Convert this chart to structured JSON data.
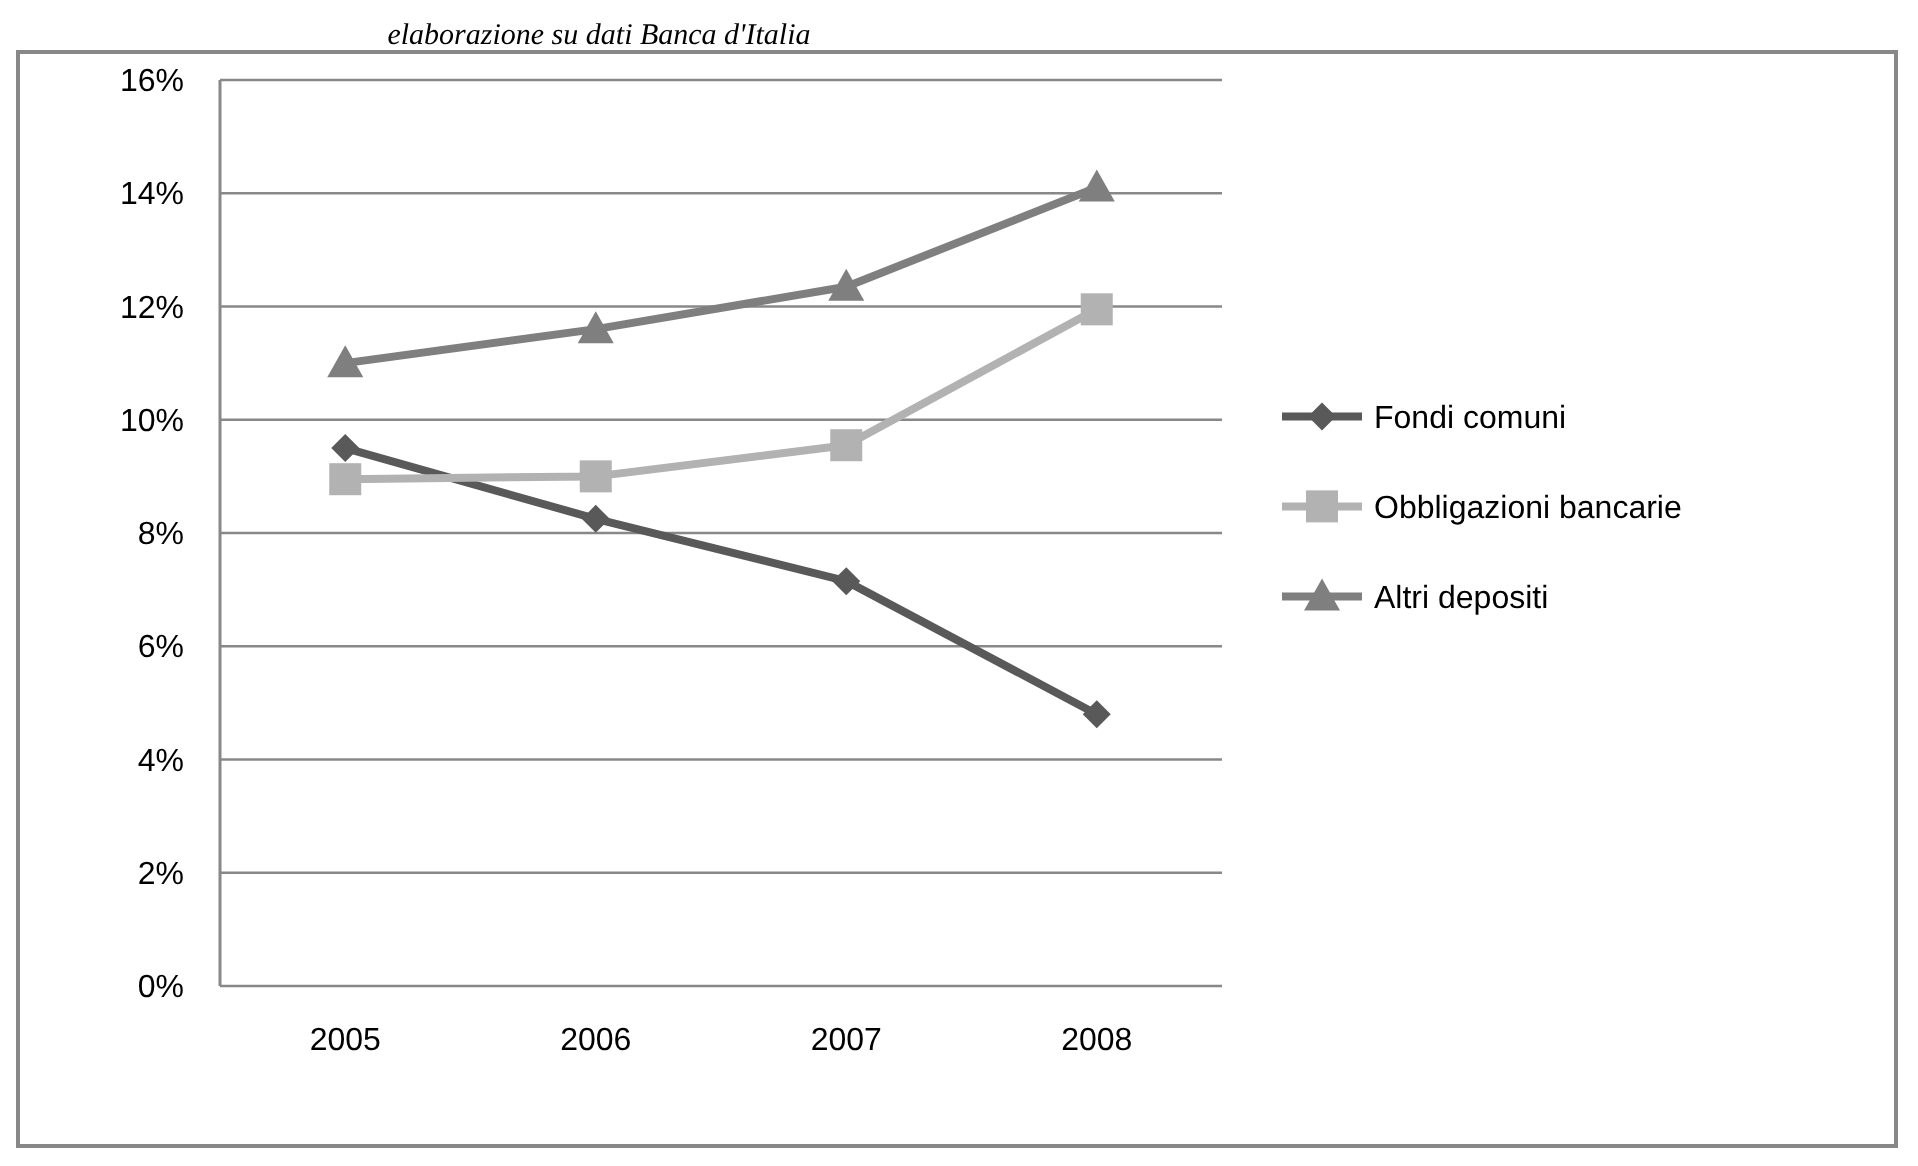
{
  "chart_data": {
    "type": "line",
    "annotations": [
      "elaborazione su dati Banca d'Italia"
    ],
    "categories": [
      "2005",
      "2006",
      "2007",
      "2008"
    ],
    "series": [
      {
        "name": "Fondi comuni",
        "color": "#595959",
        "marker": "diamond",
        "values": [
          9.5,
          8.25,
          7.15,
          4.8
        ]
      },
      {
        "name": "Obbligazioni bancarie",
        "color": "#b2b2b2",
        "marker": "square",
        "values": [
          8.95,
          9.0,
          9.55,
          11.95
        ]
      },
      {
        "name": "Altri depositi",
        "color": "#7f7f7f",
        "marker": "triangle",
        "values": [
          11.0,
          11.6,
          12.35,
          14.1
        ]
      }
    ],
    "ylim": [
      0,
      16
    ],
    "yticks": [
      {
        "value": 0,
        "label": "0%"
      },
      {
        "value": 2,
        "label": "2%"
      },
      {
        "value": 4,
        "label": "4%"
      },
      {
        "value": 6,
        "label": "6%"
      },
      {
        "value": 8,
        "label": "8%"
      },
      {
        "value": 10,
        "label": "10%"
      },
      {
        "value": 12,
        "label": "12%"
      },
      {
        "value": 14,
        "label": "14%"
      },
      {
        "value": 16,
        "label": "16%"
      }
    ],
    "grid": "y",
    "legend": "right",
    "line_style": "solid"
  }
}
